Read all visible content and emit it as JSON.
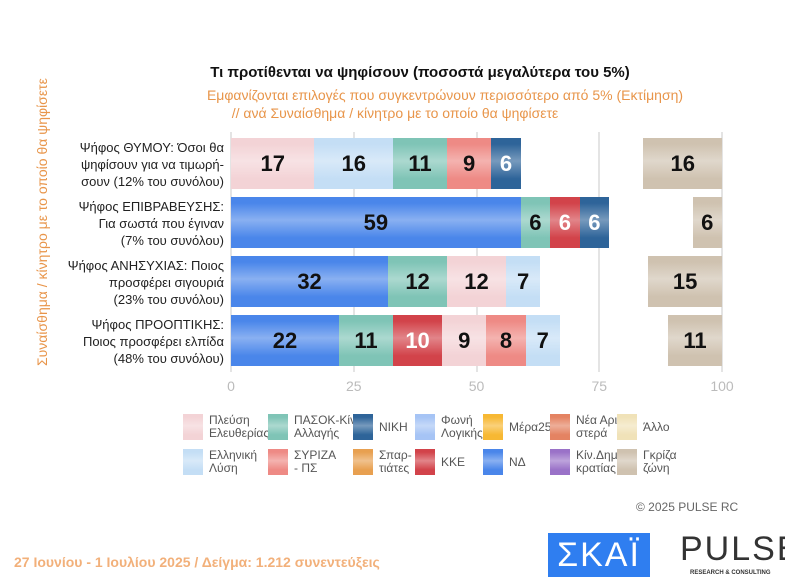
{
  "chart_data": {
    "type": "bar",
    "stacked": true,
    "orientation": "horizontal",
    "title": "Τι προτίθενται να ψηφίσουν   (ποσοστά μεγαλύτερα του 5%)",
    "subtitle": [
      "Εμφανίζονται επιλογές που συγκεντρώνουν περισσότερο από 5%   (Εκτίμηση)",
      "// ανά Συναίσθημα / κίνητρο με το οποίο θα ψηφίσετε"
    ],
    "ylabel": "Συναίσθημα / κίνητρο με το οποίο θα ψηφίσετε",
    "xlim": [
      0,
      100
    ],
    "xticks": [
      "0",
      "25",
      "50",
      "75",
      "100"
    ],
    "grid": true,
    "legend_position": "bottom",
    "categories": [
      "Ψήφος ΘΥΜΟΥ:  Όσοι θα ψηφίσουν για να τιμωρή- σουν   (12% του συνόλου)",
      "Ψήφος ΕΠΙΒΡΑΒΕΥΣΗΣ: Για σωστά που έγιναν (7% του συνόλου)",
      "Ψήφος ΑΝΗΣΥΧΙΑΣ:  Ποιος προσφέρει σιγουριά (23% του συνόλου)",
      "Ψήφος ΠΡΟΟΠΤΙΚΗΣ: Ποιος προσφέρει ελπίδα (48% του συνόλου)"
    ],
    "rows": [
      {
        "segments": [
          {
            "party": "Πλεύση Ελευθερίας",
            "value": 17
          },
          {
            "party": "Ελληνική Λύση",
            "value": 16
          },
          {
            "party": "ΠΑΣΟΚ-Κίν. Αλλαγής",
            "value": 11
          },
          {
            "party": "ΣΥΡΙΖΑ - ΠΣ",
            "value": 9
          },
          {
            "party": "ΝΙΚΗ",
            "value": 6
          }
        ],
        "grey_zone": 16
      },
      {
        "segments": [
          {
            "party": "ΝΔ",
            "value": 59
          },
          {
            "party": "ΠΑΣΟΚ-Κίν. Αλλαγής",
            "value": 6
          },
          {
            "party": "ΚΚΕ",
            "value": 6
          },
          {
            "party": "ΝΙΚΗ",
            "value": 6
          }
        ],
        "grey_zone": 6
      },
      {
        "segments": [
          {
            "party": "ΝΔ",
            "value": 32
          },
          {
            "party": "ΠΑΣΟΚ-Κίν. Αλλαγής",
            "value": 12
          },
          {
            "party": "Πλεύση Ελευθερίας",
            "value": 12
          },
          {
            "party": "Ελληνική Λύση",
            "value": 7
          }
        ],
        "grey_zone": 15
      },
      {
        "segments": [
          {
            "party": "ΝΔ",
            "value": 22
          },
          {
            "party": "ΠΑΣΟΚ-Κίν. Αλλαγής",
            "value": 11
          },
          {
            "party": "ΚΚΕ",
            "value": 10
          },
          {
            "party": "Πλεύση Ελευθερίας",
            "value": 9
          },
          {
            "party": "ΣΥΡΙΖΑ - ΠΣ",
            "value": 8
          },
          {
            "party": "Ελληνική Λύση",
            "value": 7
          }
        ],
        "grey_zone": 11
      }
    ],
    "legend": [
      {
        "name": "Πλεύση Ελευθερίας",
        "label": [
          "Πλεύση",
          "Ελευθερίας"
        ],
        "color": "#f3d3d6",
        "text": "#111"
      },
      {
        "name": "ΠΑΣΟΚ-Κίν. Αλλαγής",
        "label": [
          "ΠΑΣΟΚ-Κίν.",
          "Αλλαγής"
        ],
        "color": "#7fc4b6",
        "text": "#111"
      },
      {
        "name": "ΝΙΚΗ",
        "label": [
          "ΝΙΚΗ"
        ],
        "color": "#2e6499",
        "text": "#fff"
      },
      {
        "name": "Φωνή Λογικής",
        "label": [
          "Φωνή",
          "Λογικής"
        ],
        "color": "#a6c4f5",
        "text": "#111"
      },
      {
        "name": "Μέρα25",
        "label": [
          "Μέρα25"
        ],
        "color": "#f7b833",
        "text": "#111"
      },
      {
        "name": "Νέα Αριστερά",
        "label": [
          "Νέα Αρι-",
          "στερά"
        ],
        "color": "#e48362",
        "text": "#111"
      },
      {
        "name": "Άλλο",
        "label": [
          "Άλλο"
        ],
        "color": "#f0e2b8",
        "text": "#111"
      },
      {
        "name": "Ελληνική Λύση",
        "label": [
          "Ελληνική",
          "Λύση"
        ],
        "color": "#c4def5",
        "text": "#111"
      },
      {
        "name": "ΣΥΡΙΖΑ - ΠΣ",
        "label": [
          "ΣΥΡΙΖΑ",
          "- ΠΣ"
        ],
        "color": "#ee8a85",
        "text": "#111"
      },
      {
        "name": "Σπαρτιάτες",
        "label": [
          "Σπαρ-",
          "τιάτες"
        ],
        "color": "#e8a050",
        "text": "#111"
      },
      {
        "name": "ΚΚΕ",
        "label": [
          "ΚΚΕ"
        ],
        "color": "#d2434a",
        "text": "#fff"
      },
      {
        "name": "ΝΔ",
        "label": [
          "ΝΔ"
        ],
        "color": "#4a86ea",
        "text": "#111"
      },
      {
        "name": "Κίν.Δημοκρατίας",
        "label": [
          "Κίν.Δημο-",
          "κρατίας"
        ],
        "color": "#9a72c8",
        "text": "#fff"
      },
      {
        "name": "Γκρίζα ζώνη",
        "label": [
          "Γκρίζα",
          "ζώνη"
        ],
        "color": "#cfc2b0",
        "text": "#111"
      }
    ]
  },
  "row_labels": [
    [
      "Ψήφος ΘΥΜΟΥ:  Όσοι θα",
      "ψηφίσουν για να τιμωρή-",
      "σουν   (12% του συνόλου)"
    ],
    [
      "Ψήφος ΕΠΙΒΡΑΒΕΥΣΗΣ:",
      "Για σωστά που έγιναν",
      "(7% του συνόλου)"
    ],
    [
      "Ψήφος ΑΝΗΣΥΧΙΑΣ:  Ποιος",
      "προσφέρει σιγουριά",
      "(23% του συνόλου)"
    ],
    [
      "Ψήφος ΠΡΟΟΠΤΙΚΗΣ:",
      "Ποιος προσφέρει ελπίδα",
      "(48% του συνόλου)"
    ]
  ],
  "copyright": "©  2025  PULSE RC",
  "footer": "27 Ιουνίου - 1 Ιουλίου 2025  /  Δείγμα:  1.212 συνεντεύξεις",
  "logos": {
    "skai": "ΣΚΑΪ",
    "pulse": "PULSE",
    "pulse_tagline": "RESEARCH & CONSULTING"
  }
}
